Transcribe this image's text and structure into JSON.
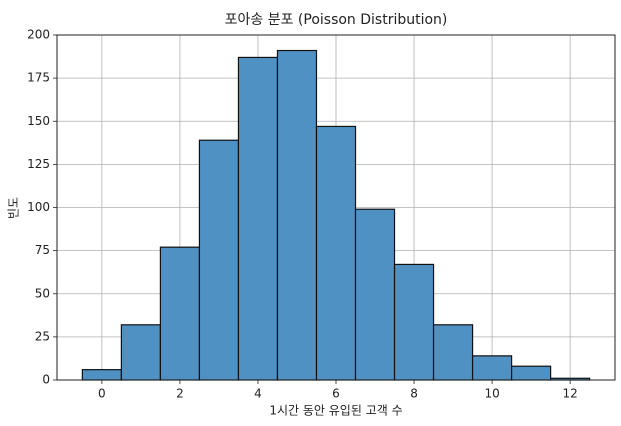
{
  "chart_data": {
    "type": "histogram",
    "title": "포아송 분포 (Poisson Distribution)",
    "x_label": "1시간 동안 유입된 고객 수",
    "y_label": "빈도",
    "bins": [
      -0.5,
      0.5,
      1.5,
      2.5,
      3.5,
      4.5,
      5.5,
      6.5,
      7.5,
      8.5,
      9.5,
      10.5,
      11.5,
      12.5
    ],
    "counts": [
      6,
      32,
      77,
      139,
      187,
      191,
      147,
      99,
      67,
      32,
      14,
      8,
      1
    ],
    "color": "#4f91c3",
    "edge_color": "#111111",
    "xlim": [
      -1.15,
      13.15
    ],
    "ylim": [
      0,
      200
    ],
    "xticks": [
      0,
      2,
      4,
      6,
      8,
      10,
      12
    ],
    "yticks": [
      0,
      25,
      50,
      75,
      100,
      125,
      150,
      175,
      200
    ],
    "grid": true
  }
}
